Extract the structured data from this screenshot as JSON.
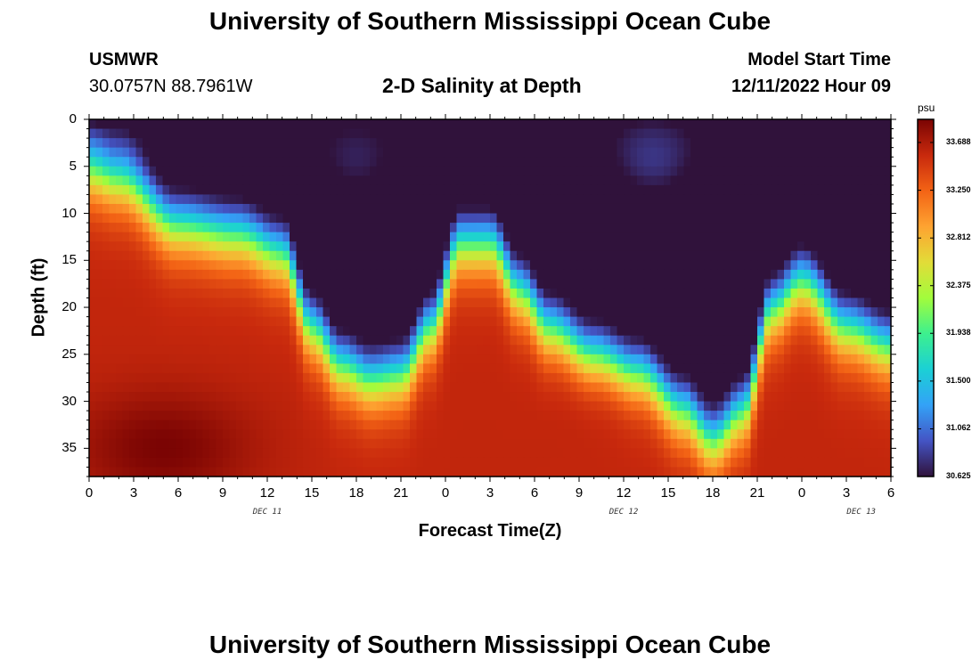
{
  "page": {
    "title_top": "University of Southern Mississippi Ocean Cube",
    "title_bottom": "University of Southern Mississippi Ocean Cube",
    "station_name": "USMWR",
    "station_coords": "30.0757N  88.7961W",
    "subtitle": "2-D Salinity at Depth",
    "model_start_label": "Model Start Time",
    "model_start_value": "12/11/2022 Hour 09"
  },
  "colors": {
    "colormap": [
      "#30123b",
      "#4454c4",
      "#33a2f7",
      "#1bd0d5",
      "#3df08e",
      "#a2fc3c",
      "#e2dc38",
      "#fea331",
      "#f36315",
      "#c8290d",
      "#7a0403"
    ]
  },
  "chart_data": {
    "type": "heatmap",
    "title": "2-D Salinity at Depth",
    "xlabel": "Forecast Time(Z)",
    "ylabel": "Depth (ft)",
    "x_ticks": [
      "0",
      "3",
      "6",
      "9",
      "12",
      "15",
      "18",
      "21",
      "0",
      "3",
      "6",
      "9",
      "12",
      "15",
      "18",
      "21",
      "0",
      "3",
      "6"
    ],
    "x_range_hours": [
      0,
      54
    ],
    "date_labels": [
      {
        "text": "DEC 11",
        "hour": 12
      },
      {
        "text": "DEC 12",
        "hour": 36
      },
      {
        "text": "DEC 13",
        "hour": 52
      }
    ],
    "y_ticks": [
      "0",
      "5",
      "10",
      "15",
      "20",
      "25",
      "30",
      "35"
    ],
    "y_range_ft": [
      0,
      38
    ],
    "colorbar": {
      "unit": "psu",
      "range": [
        30.625,
        33.9
      ],
      "ticks": [
        "33.688",
        "33.250",
        "32.812",
        "32.375",
        "31.938",
        "31.500",
        "31.062",
        "30.625"
      ]
    },
    "interface_depth_ft": [
      {
        "hour": 0,
        "depth": 5
      },
      {
        "hour": 2,
        "depth": 6
      },
      {
        "hour": 6,
        "depth": 11
      },
      {
        "hour": 10,
        "depth": 12
      },
      {
        "hour": 13,
        "depth": 14
      },
      {
        "hour": 15,
        "depth": 22
      },
      {
        "hour": 17,
        "depth": 26
      },
      {
        "hour": 19,
        "depth": 27.5
      },
      {
        "hour": 21,
        "depth": 27
      },
      {
        "hour": 23,
        "depth": 22
      },
      {
        "hour": 25,
        "depth": 13
      },
      {
        "hour": 27,
        "depth": 13
      },
      {
        "hour": 29,
        "depth": 18
      },
      {
        "hour": 31,
        "depth": 22
      },
      {
        "hour": 34,
        "depth": 25
      },
      {
        "hour": 37,
        "depth": 27
      },
      {
        "hour": 40,
        "depth": 31
      },
      {
        "hour": 42,
        "depth": 34
      },
      {
        "hour": 44,
        "depth": 31
      },
      {
        "hour": 46,
        "depth": 20
      },
      {
        "hour": 48,
        "depth": 17
      },
      {
        "hour": 51,
        "depth": 22
      },
      {
        "hour": 54,
        "depth": 24
      }
    ],
    "fresh_pockets": [
      {
        "hour": 18,
        "depth": 4,
        "min_psu": 30.7
      },
      {
        "hour": 38,
        "depth": 4,
        "min_psu": 30.8
      }
    ],
    "salty_cores": [
      {
        "hour": 5,
        "depth": 35,
        "max_psu": 33.9
      },
      {
        "hour": 31,
        "depth": 35,
        "max_psu": 33.6
      }
    ]
  }
}
